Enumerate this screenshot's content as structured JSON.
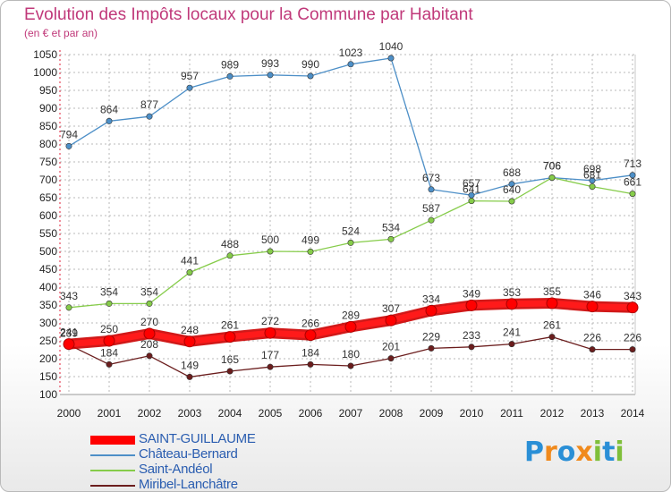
{
  "header": {
    "title": "Evolution des Impôts locaux pour la Commune par Habitant",
    "subtitle": "(en € et par an)"
  },
  "colors": {
    "title": "#c0397a",
    "grid": "#b8b8b8",
    "axis_red": "#e0203a"
  },
  "logo": {
    "letters": [
      "P",
      "r",
      "o",
      "x",
      "i",
      "t",
      "i"
    ],
    "colors": [
      "#2a8fd6",
      "#f08a1d",
      "#2a8fd6",
      "#f08a1d",
      "#7fbf3a",
      "#2a8fd6",
      "#7fbf3a"
    ],
    "text": "Proxiti"
  },
  "chart_data": {
    "type": "line",
    "title": "Evolution des Impôts locaux pour la Commune par Habitant",
    "subtitle": "(en € et par an)",
    "xlabel": "",
    "ylabel": "",
    "x": [
      "2000",
      "2001",
      "2002",
      "2003",
      "2004",
      "2005",
      "2006",
      "2007",
      "2008",
      "2009",
      "2010",
      "2011",
      "2012",
      "2013",
      "2014"
    ],
    "ylim": [
      100,
      1050
    ],
    "yticks": [
      100,
      150,
      200,
      250,
      300,
      350,
      400,
      450,
      500,
      550,
      600,
      650,
      700,
      750,
      800,
      850,
      900,
      950,
      1000,
      1050
    ],
    "grid": "horizontal dashed",
    "legend_position": "bottom-left",
    "series": [
      {
        "name": "Château-Bernard",
        "color": "#4d8fc7",
        "values": [
          794,
          864,
          877,
          957,
          989,
          993,
          990,
          1023,
          1040,
          673,
          657,
          688,
          706,
          698,
          713
        ]
      },
      {
        "name": "Saint-Andéol",
        "color": "#86cc4a",
        "values": [
          343,
          354,
          354,
          441,
          488,
          500,
          499,
          524,
          534,
          587,
          641,
          640,
          706,
          681,
          661
        ]
      },
      {
        "name": "Miribel-Lanchâtre",
        "color": "#6b1d1d",
        "values": [
          239,
          184,
          208,
          149,
          165,
          177,
          184,
          180,
          201,
          229,
          233,
          241,
          261,
          226,
          226
        ]
      },
      {
        "name": "SAINT-GUILLAUME",
        "color": "#ff0000",
        "values": [
          241,
          250,
          270,
          248,
          261,
          272,
          266,
          289,
          307,
          334,
          349,
          353,
          355,
          346,
          343
        ]
      }
    ],
    "legend_order": [
      "SAINT-GUILLAUME",
      "Château-Bernard",
      "Saint-Andéol",
      "Miribel-Lanchâtre"
    ]
  }
}
